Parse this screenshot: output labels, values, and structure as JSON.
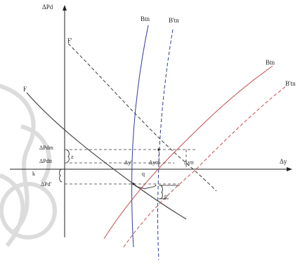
{
  "labels": {
    "y_axis": "ΔPd",
    "x_axis": "Δy",
    "curve_F": "F",
    "curve_F_prime": "F'",
    "curve_Btn_top": "Btn",
    "curve_Btn_prime_top": "B'tn",
    "curve_Btn_right": "Btn",
    "curve_Btn_prime_right": "B'tn",
    "dPdm": "ΔPdm",
    "dPdtt": "ΔPdtt",
    "dPd_prime": "ΔPd'",
    "k": "k",
    "z": "z",
    "dy_prime": "Δy'",
    "dytn": "Δytn",
    "dytt": "Δytt",
    "q": "q",
    "p": "p"
  },
  "colors": {
    "axis": "#222222",
    "curve_dark": "#3a3a3a",
    "curve_blue": "#2f3b9a",
    "curve_red": "#c0504d",
    "watermark": "#dcdcdc"
  }
}
